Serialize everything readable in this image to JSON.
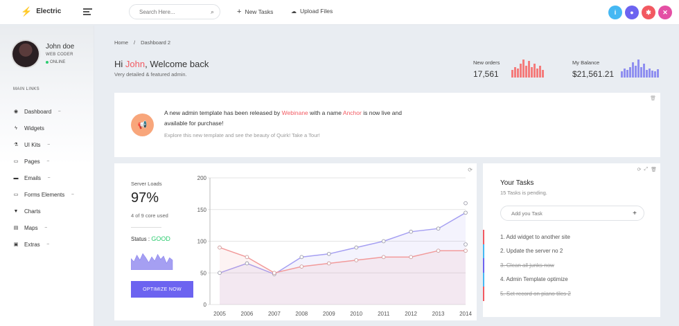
{
  "brand": {
    "name": "Electric"
  },
  "search": {
    "placeholder": "Search Here..."
  },
  "topbar": {
    "new_tasks": "New Tasks",
    "upload_files": "Upload Files"
  },
  "topbar_circles": [
    {
      "icon": "info-icon",
      "glyph": "i",
      "color": "#45b8f3"
    },
    {
      "icon": "chat-icon",
      "glyph": "●",
      "color": "#6c63f0"
    },
    {
      "icon": "settings-icon",
      "glyph": "✱",
      "color": "#f25961"
    },
    {
      "icon": "close-icon",
      "glyph": "✕",
      "color": "#e44fa4"
    }
  ],
  "user": {
    "name": "John doe",
    "role": "WEB CODER",
    "status": "ONLINE"
  },
  "sidebar": {
    "section_label": "MAIN LINKS",
    "items": [
      {
        "label": "Dashboard",
        "icon": "dashboard-icon",
        "glyph": "◉",
        "chevron": true
      },
      {
        "label": "Widgets",
        "icon": "bolt-icon",
        "glyph": "ϟ",
        "chevron": false
      },
      {
        "label": "UI Kits",
        "icon": "flask-icon",
        "glyph": "⚗",
        "chevron": true
      },
      {
        "label": "Pages",
        "icon": "pages-icon",
        "glyph": "▭",
        "chevron": true
      },
      {
        "label": "Emails",
        "icon": "inbox-icon",
        "glyph": "▬",
        "chevron": true
      },
      {
        "label": "Forms Elements",
        "icon": "forms-icon",
        "glyph": "▭",
        "chevron": true
      },
      {
        "label": "Charts",
        "icon": "trophy-icon",
        "glyph": "▼",
        "chevron": false
      },
      {
        "label": "Maps",
        "icon": "map-icon",
        "glyph": "▤",
        "chevron": true
      },
      {
        "label": "Extras",
        "icon": "gift-icon",
        "glyph": "▣",
        "chevron": true
      }
    ]
  },
  "breadcrumb": {
    "home": "Home",
    "sep": "/",
    "current": "Dashboard 2"
  },
  "welcome": {
    "greeting": "Hi",
    "name": "John",
    "rest": ", Welcome back",
    "subtitle": "Very detailed & featured admin."
  },
  "stats": {
    "orders": {
      "label": "New orders",
      "value": "17,561",
      "color": "#f47b7b",
      "bars": [
        10,
        14,
        12,
        18,
        24,
        16,
        22,
        14,
        18,
        12,
        16,
        10
      ]
    },
    "balance": {
      "label": "My Balance",
      "value": "$21,561.21",
      "color": "#8f8ff0",
      "bars": [
        8,
        12,
        10,
        14,
        20,
        16,
        24,
        14,
        18,
        10,
        12,
        9,
        8,
        11
      ]
    }
  },
  "announcement": {
    "text_1": "A new admin template has been released by",
    "link_1": "Webinane",
    "text_2": "with a name",
    "link_2": "Anchor",
    "text_3": "is now live and available for purchase!",
    "sub": "Explore this new template and see the beauty of Quirk! Take a Tour!"
  },
  "server": {
    "label": "Server Loads",
    "value": "97%",
    "sub": "4 of 9 core used",
    "status_label": "Status :",
    "status_value": "GOOD",
    "button": "OPTIMIZE NOW",
    "mini_series": [
      14,
      10,
      18,
      12,
      20,
      15,
      9,
      16,
      11,
      19,
      13,
      17,
      8,
      15,
      12
    ]
  },
  "chart_data": {
    "type": "line",
    "x": [
      "2005",
      "2006",
      "2007",
      "2008",
      "2009",
      "2010",
      "2011",
      "2012",
      "2013",
      "2014"
    ],
    "ylim": [
      0,
      200
    ],
    "yticks": [
      "0",
      "50",
      "100",
      "150",
      "200"
    ],
    "grid": true,
    "series": [
      {
        "values": [
          50,
          65,
          48,
          75,
          80,
          90,
          100,
          115,
          120,
          145
        ],
        "color": "#a59ff2",
        "end_marker": 160
      },
      {
        "values": [
          90,
          75,
          50,
          60,
          65,
          70,
          75,
          75,
          85,
          85
        ],
        "color": "#f29a9a",
        "end_marker": 95
      }
    ]
  },
  "tasks": {
    "title": "Your Tasks",
    "subtitle": "15 Tasks is pending.",
    "input_placeholder": "Add you Task",
    "items": [
      {
        "label": "1. Add widget to another site",
        "done": false,
        "color": "#f25961"
      },
      {
        "label": "2. Update the server no 2",
        "done": false,
        "color": "#45b8f3"
      },
      {
        "label": "3. Clean all junks now",
        "done": true,
        "color": "#6c63f0"
      },
      {
        "label": "4. Admin Template optimize",
        "done": false,
        "color": "#45b8f3"
      },
      {
        "label": "5. Set record on piano tiles 2",
        "done": true,
        "color": "#f25961"
      }
    ]
  }
}
